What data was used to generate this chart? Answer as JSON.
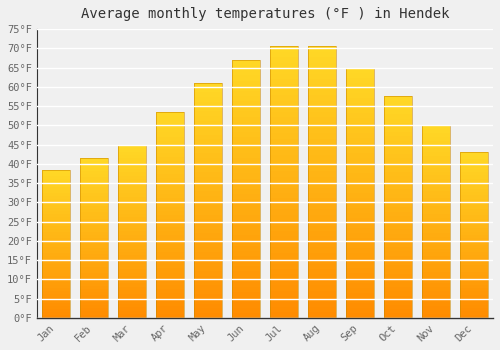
{
  "title": "Average monthly temperatures (°F ) in Hendek",
  "months": [
    "Jan",
    "Feb",
    "Mar",
    "Apr",
    "May",
    "Jun",
    "Jul",
    "Aug",
    "Sep",
    "Oct",
    "Nov",
    "Dec"
  ],
  "values": [
    38.5,
    41.5,
    45.0,
    53.5,
    61.0,
    67.0,
    70.5,
    70.5,
    65.0,
    57.5,
    50.0,
    43.0
  ],
  "bar_color_main": "#FFA500",
  "bar_color_light": "#FFD050",
  "ylim": [
    0,
    75
  ],
  "yticks": [
    0,
    5,
    10,
    15,
    20,
    25,
    30,
    35,
    40,
    45,
    50,
    55,
    60,
    65,
    70,
    75
  ],
  "background_color": "#f0f0f0",
  "plot_bg_color": "#f0f0f0",
  "grid_color": "#ffffff",
  "title_fontsize": 10,
  "tick_fontsize": 7.5,
  "tick_color": "#666666",
  "font_family": "monospace"
}
